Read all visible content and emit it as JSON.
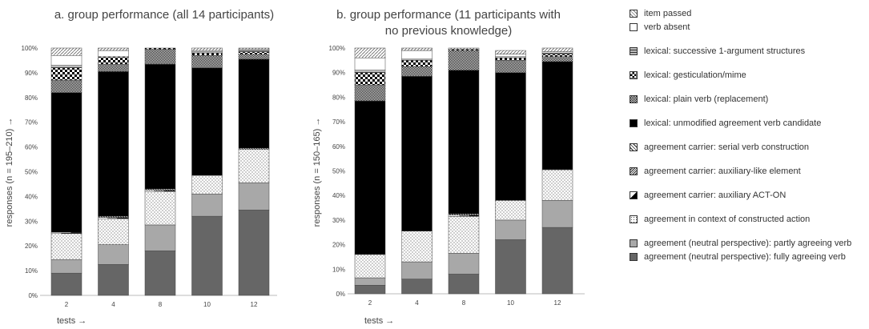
{
  "chart_data": [
    {
      "type": "bar",
      "stacked": true,
      "title": "a. group performance (all 14 participants)",
      "xlabel": "tests →",
      "ylabel": "responses (n = 195–210) →",
      "ylim": [
        0,
        100
      ],
      "y_tick_labels": [
        "0%",
        "10%",
        "20%",
        "30%",
        "40%",
        "50%",
        "60%",
        "70%",
        "80%",
        "90%",
        "100%"
      ],
      "categories": [
        "2",
        "4",
        "8",
        "10",
        "12"
      ],
      "series": [
        {
          "name": "agreement (neutral perspective): fully agreeing verb",
          "values": [
            9,
            12.5,
            18,
            32,
            34.5
          ]
        },
        {
          "name": "agreement (neutral perspective): partly agreeing verb",
          "values": [
            5.5,
            8,
            10.5,
            9,
            11
          ]
        },
        {
          "name": "agreement in context of constructed action",
          "values": [
            10.5,
            10.5,
            13.5,
            7.5,
            13.5
          ]
        },
        {
          "name": "agreement carrier: auxiliary ACT-ON",
          "values": [
            0.5,
            0.5,
            0.5,
            0,
            0
          ]
        },
        {
          "name": "agreement carrier: auxiliary-like element",
          "values": [
            0,
            0.5,
            0.5,
            0,
            0.5
          ]
        },
        {
          "name": "agreement carrier: serial verb construction",
          "values": [
            0,
            0,
            0,
            0,
            0
          ]
        },
        {
          "name": "lexical: unmodified agreement verb candidate",
          "values": [
            56.5,
            58.5,
            50.5,
            43.5,
            36
          ]
        },
        {
          "name": "lexical: plain verb (replacement)",
          "values": [
            5,
            3,
            6,
            5,
            2
          ]
        },
        {
          "name": "lexical: gesticulation/mime",
          "values": [
            5,
            3,
            0.5,
            1,
            1
          ]
        },
        {
          "name": "lexical: successive 1-argument structures",
          "values": [
            1,
            0,
            0,
            0.5,
            0.5
          ]
        },
        {
          "name": "verb absent",
          "values": [
            4,
            2.5,
            0,
            0.5,
            0.5
          ]
        },
        {
          "name": "item passed",
          "values": [
            3,
            1,
            0,
            1,
            0.5
          ]
        }
      ]
    },
    {
      "type": "bar",
      "stacked": true,
      "title": "b. group performance (11 participants with no previous knowledge)",
      "xlabel": "tests →",
      "ylabel": "responses (n = 150–165) →",
      "ylim": [
        0,
        100
      ],
      "y_tick_labels": [
        "0%",
        "10%",
        "20%",
        "30%",
        "40%",
        "50%",
        "60%",
        "70%",
        "80%",
        "90%",
        "100%"
      ],
      "categories": [
        "2",
        "4",
        "8",
        "10",
        "12"
      ],
      "series": [
        {
          "name": "agreement (neutral perspective): fully agreeing verb",
          "values": [
            3.5,
            6,
            8,
            22,
            27
          ]
        },
        {
          "name": "agreement (neutral perspective): partly agreeing verb",
          "values": [
            3,
            7,
            8.5,
            8,
            11
          ]
        },
        {
          "name": "agreement in context of constructed action",
          "values": [
            9.5,
            12.5,
            15,
            8,
            12.5
          ]
        },
        {
          "name": "agreement carrier: auxiliary ACT-ON",
          "values": [
            0,
            0,
            0.5,
            0,
            0
          ]
        },
        {
          "name": "agreement carrier: auxiliary-like element",
          "values": [
            0,
            0,
            0.5,
            0,
            0
          ]
        },
        {
          "name": "agreement carrier: serial verb construction",
          "values": [
            0,
            0,
            0,
            0,
            0
          ]
        },
        {
          "name": "lexical: unmodified agreement verb candidate",
          "values": [
            62.5,
            63,
            58.5,
            52,
            44
          ]
        },
        {
          "name": "lexical: plain verb (replacement)",
          "values": [
            6.5,
            4,
            8,
            5,
            2
          ]
        },
        {
          "name": "lexical: gesticulation/mime",
          "values": [
            5,
            2.5,
            0.5,
            1,
            1
          ]
        },
        {
          "name": "lexical: successive 1-argument structures",
          "values": [
            1,
            0.5,
            0,
            0.5,
            0.5
          ]
        },
        {
          "name": "verb absent",
          "values": [
            5,
            3.5,
            0,
            1,
            0.5
          ]
        },
        {
          "name": "item passed",
          "values": [
            4,
            1,
            0.5,
            1.5,
            1.5
          ]
        }
      ]
    }
  ],
  "legend": {
    "items": [
      {
        "label": "item passed",
        "pattern": "light-diag",
        "gap_after": false
      },
      {
        "label": "verb absent",
        "pattern": "white",
        "gap_after": true
      },
      {
        "label": "lexical: successive 1-argument structures",
        "pattern": "horiz",
        "gap_after": true
      },
      {
        "label": "lexical: gesticulation/mime",
        "pattern": "check",
        "gap_after": true
      },
      {
        "label": "lexical: plain verb (replacement)",
        "pattern": "fine-check",
        "gap_after": true
      },
      {
        "label": "lexical: unmodified agreement verb candidate",
        "pattern": "black",
        "gap_after": true
      },
      {
        "label": "agreement carrier: serial verb construction",
        "pattern": "diag-wide",
        "gap_after": true
      },
      {
        "label": "agreement carrier: auxiliary-like element",
        "pattern": "diag-dense",
        "gap_after": true
      },
      {
        "label": "agreement carrier: auxiliary ACT-ON",
        "pattern": "half",
        "gap_after": true
      },
      {
        "label": "agreement in context of constructed action",
        "pattern": "dots",
        "gap_after": true
      },
      {
        "label": "agreement (neutral perspective): partly agreeing verb",
        "pattern": "lightgray",
        "gap_after": false
      },
      {
        "label": "agreement (neutral perspective): fully agreeing verb",
        "pattern": "darkgray",
        "gap_after": false
      }
    ]
  }
}
